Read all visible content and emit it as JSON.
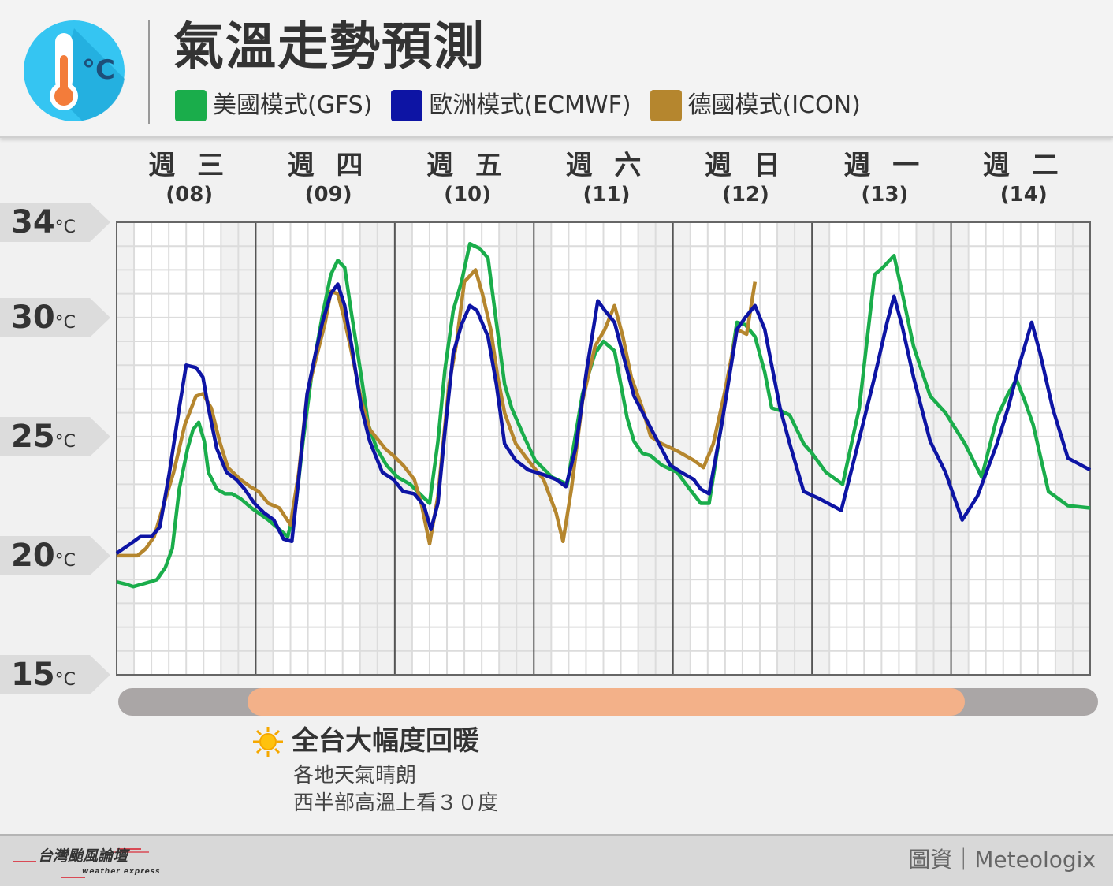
{
  "header": {
    "title": "氣溫走勢預測",
    "icon": "thermometer-celsius-icon"
  },
  "legend": [
    {
      "label": "美國模式(GFS)",
      "color": "#1aad4b"
    },
    {
      "label": "歐洲模式(ECMWF)",
      "color": "#0d14a4"
    },
    {
      "label": "德國模式(ICON)",
      "color": "#b5862e"
    }
  ],
  "chart_data": {
    "type": "line",
    "x_unit": "day of month",
    "xlim": [
      8,
      15
    ],
    "ylim": [
      15,
      34
    ],
    "y_ticks": [
      34,
      30,
      25,
      20,
      15
    ],
    "y_unit": "°C",
    "grid": true,
    "legend_position": "top",
    "categories": [
      {
        "day": "週 三",
        "date": "(08)"
      },
      {
        "day": "週 四",
        "date": "(09)"
      },
      {
        "day": "週 五",
        "date": "(10)"
      },
      {
        "day": "週 六",
        "date": "(11)"
      },
      {
        "day": "週 日",
        "date": "(12)"
      },
      {
        "day": "週 一",
        "date": "(13)"
      },
      {
        "day": "週 二",
        "date": "(14)"
      }
    ],
    "series": [
      {
        "name": "美國模式(GFS)",
        "color": "#1aad4b",
        "points": [
          [
            8.0,
            18.9
          ],
          [
            8.07,
            18.8
          ],
          [
            8.12,
            18.7
          ],
          [
            8.18,
            18.8
          ],
          [
            8.24,
            18.9
          ],
          [
            8.29,
            19.0
          ],
          [
            8.35,
            19.5
          ],
          [
            8.4,
            20.3
          ],
          [
            8.45,
            22.8
          ],
          [
            8.51,
            24.5
          ],
          [
            8.55,
            25.3
          ],
          [
            8.59,
            25.6
          ],
          [
            8.63,
            24.8
          ],
          [
            8.66,
            23.5
          ],
          [
            8.72,
            22.8
          ],
          [
            8.78,
            22.6
          ],
          [
            8.83,
            22.6
          ],
          [
            8.89,
            22.4
          ],
          [
            8.97,
            22.0
          ],
          [
            9.09,
            21.5
          ],
          [
            9.23,
            20.8
          ],
          [
            9.29,
            22.2
          ],
          [
            9.34,
            24.8
          ],
          [
            9.4,
            27.5
          ],
          [
            9.48,
            30.1
          ],
          [
            9.54,
            31.8
          ],
          [
            9.59,
            32.4
          ],
          [
            9.64,
            32.1
          ],
          [
            9.69,
            30.1
          ],
          [
            9.76,
            27.5
          ],
          [
            9.81,
            25.5
          ],
          [
            9.87,
            24.5
          ],
          [
            9.94,
            23.8
          ],
          [
            10.02,
            23.3
          ],
          [
            10.11,
            23.0
          ],
          [
            10.18,
            22.6
          ],
          [
            10.25,
            22.2
          ],
          [
            10.31,
            24.8
          ],
          [
            10.36,
            27.8
          ],
          [
            10.42,
            30.3
          ],
          [
            10.48,
            31.5
          ],
          [
            10.54,
            33.1
          ],
          [
            10.61,
            32.9
          ],
          [
            10.67,
            32.5
          ],
          [
            10.73,
            29.8
          ],
          [
            10.79,
            27.2
          ],
          [
            10.84,
            26.2
          ],
          [
            10.93,
            25.0
          ],
          [
            11.01,
            24.0
          ],
          [
            11.13,
            23.3
          ],
          [
            11.24,
            23.0
          ],
          [
            11.35,
            26.8
          ],
          [
            11.44,
            28.5
          ],
          [
            11.5,
            29.0
          ],
          [
            11.58,
            28.6
          ],
          [
            11.67,
            25.8
          ],
          [
            11.72,
            24.8
          ],
          [
            11.78,
            24.3
          ],
          [
            11.84,
            24.2
          ],
          [
            11.92,
            23.8
          ],
          [
            12.03,
            23.5
          ],
          [
            12.12,
            22.8
          ],
          [
            12.2,
            22.2
          ],
          [
            12.26,
            22.2
          ],
          [
            12.33,
            24.8
          ],
          [
            12.46,
            29.8
          ],
          [
            12.52,
            29.7
          ],
          [
            12.59,
            29.2
          ],
          [
            12.66,
            27.7
          ],
          [
            12.71,
            26.2
          ],
          [
            12.77,
            26.1
          ],
          [
            12.84,
            25.9
          ],
          [
            12.94,
            24.7
          ],
          [
            13.0,
            24.3
          ],
          [
            13.1,
            23.5
          ],
          [
            13.22,
            23.0
          ],
          [
            13.34,
            26.2
          ],
          [
            13.45,
            31.8
          ],
          [
            13.51,
            32.1
          ],
          [
            13.59,
            32.6
          ],
          [
            13.65,
            31.0
          ],
          [
            13.73,
            28.8
          ],
          [
            13.85,
            26.7
          ],
          [
            13.96,
            26.0
          ],
          [
            14.1,
            24.7
          ],
          [
            14.22,
            23.3
          ],
          [
            14.33,
            25.8
          ],
          [
            14.41,
            26.8
          ],
          [
            14.47,
            27.4
          ],
          [
            14.53,
            26.5
          ],
          [
            14.59,
            25.5
          ],
          [
            14.7,
            22.7
          ],
          [
            14.84,
            22.1
          ],
          [
            15.0,
            22.0
          ]
        ]
      },
      {
        "name": "歐洲模式(ECMWF)",
        "color": "#0d14a4",
        "points": [
          [
            8.0,
            20.1
          ],
          [
            8.1,
            20.5
          ],
          [
            8.17,
            20.8
          ],
          [
            8.25,
            20.8
          ],
          [
            8.31,
            21.2
          ],
          [
            8.38,
            23.5
          ],
          [
            8.45,
            26.2
          ],
          [
            8.5,
            28.0
          ],
          [
            8.57,
            27.9
          ],
          [
            8.62,
            27.5
          ],
          [
            8.66,
            26.2
          ],
          [
            8.72,
            24.5
          ],
          [
            8.79,
            23.5
          ],
          [
            8.86,
            23.2
          ],
          [
            8.92,
            22.8
          ],
          [
            8.99,
            22.2
          ],
          [
            9.06,
            21.8
          ],
          [
            9.13,
            21.5
          ],
          [
            9.2,
            20.7
          ],
          [
            9.26,
            20.6
          ],
          [
            9.31,
            23.3
          ],
          [
            9.37,
            26.8
          ],
          [
            9.43,
            28.5
          ],
          [
            9.48,
            29.8
          ],
          [
            9.54,
            31.0
          ],
          [
            9.59,
            31.4
          ],
          [
            9.64,
            30.5
          ],
          [
            9.69,
            28.8
          ],
          [
            9.76,
            26.2
          ],
          [
            9.82,
            24.8
          ],
          [
            9.91,
            23.5
          ],
          [
            9.99,
            23.2
          ],
          [
            10.06,
            22.7
          ],
          [
            10.14,
            22.6
          ],
          [
            10.21,
            22.1
          ],
          [
            10.26,
            21.1
          ],
          [
            10.31,
            22.2
          ],
          [
            10.36,
            25.2
          ],
          [
            10.42,
            28.5
          ],
          [
            10.48,
            29.7
          ],
          [
            10.54,
            30.5
          ],
          [
            10.59,
            30.3
          ],
          [
            10.67,
            29.2
          ],
          [
            10.73,
            27.2
          ],
          [
            10.79,
            24.7
          ],
          [
            10.87,
            24.0
          ],
          [
            10.96,
            23.6
          ],
          [
            11.07,
            23.4
          ],
          [
            11.16,
            23.2
          ],
          [
            11.23,
            22.9
          ],
          [
            11.3,
            24.5
          ],
          [
            11.38,
            27.8
          ],
          [
            11.46,
            30.7
          ],
          [
            11.51,
            30.3
          ],
          [
            11.58,
            29.8
          ],
          [
            11.67,
            27.8
          ],
          [
            11.72,
            26.7
          ],
          [
            11.81,
            25.7
          ],
          [
            11.89,
            24.8
          ],
          [
            11.98,
            23.8
          ],
          [
            12.06,
            23.5
          ],
          [
            12.15,
            23.2
          ],
          [
            12.2,
            22.8
          ],
          [
            12.26,
            22.6
          ],
          [
            12.35,
            25.5
          ],
          [
            12.46,
            29.5
          ],
          [
            12.52,
            30.0
          ],
          [
            12.59,
            30.5
          ],
          [
            12.66,
            29.5
          ],
          [
            12.71,
            28.0
          ],
          [
            12.77,
            26.2
          ],
          [
            12.84,
            24.7
          ],
          [
            12.94,
            22.7
          ],
          [
            13.05,
            22.4
          ],
          [
            13.21,
            21.9
          ],
          [
            13.31,
            24.2
          ],
          [
            13.45,
            27.5
          ],
          [
            13.54,
            29.8
          ],
          [
            13.59,
            30.9
          ],
          [
            13.65,
            29.6
          ],
          [
            13.73,
            27.5
          ],
          [
            13.85,
            24.8
          ],
          [
            13.96,
            23.5
          ],
          [
            14.08,
            21.5
          ],
          [
            14.19,
            22.5
          ],
          [
            14.33,
            24.7
          ],
          [
            14.41,
            26.2
          ],
          [
            14.5,
            28.2
          ],
          [
            14.58,
            29.8
          ],
          [
            14.64,
            28.5
          ],
          [
            14.73,
            26.2
          ],
          [
            14.84,
            24.1
          ],
          [
            15.0,
            23.6
          ]
        ]
      },
      {
        "name": "德國模式(ICON)",
        "color": "#b5862e",
        "points": [
          [
            8.0,
            20.0
          ],
          [
            8.07,
            20.0
          ],
          [
            8.15,
            20.0
          ],
          [
            8.21,
            20.3
          ],
          [
            8.27,
            20.8
          ],
          [
            8.32,
            21.8
          ],
          [
            8.41,
            23.5
          ],
          [
            8.49,
            25.5
          ],
          [
            8.57,
            26.7
          ],
          [
            8.62,
            26.8
          ],
          [
            8.68,
            26.2
          ],
          [
            8.74,
            24.8
          ],
          [
            8.8,
            23.7
          ],
          [
            8.89,
            23.2
          ],
          [
            8.96,
            22.9
          ],
          [
            9.02,
            22.7
          ],
          [
            9.09,
            22.2
          ],
          [
            9.17,
            22.0
          ],
          [
            9.25,
            21.3
          ],
          [
            9.31,
            23.5
          ],
          [
            9.37,
            26.8
          ],
          [
            9.43,
            28.2
          ],
          [
            9.5,
            29.8
          ],
          [
            9.54,
            31.1
          ],
          [
            9.59,
            31.0
          ],
          [
            9.63,
            30.1
          ],
          [
            9.68,
            28.8
          ],
          [
            9.76,
            26.5
          ],
          [
            9.82,
            25.3
          ],
          [
            9.93,
            24.5
          ],
          [
            9.99,
            24.2
          ],
          [
            10.06,
            23.8
          ],
          [
            10.14,
            23.2
          ],
          [
            10.19,
            22.2
          ],
          [
            10.25,
            20.5
          ],
          [
            10.31,
            22.5
          ],
          [
            10.39,
            27.2
          ],
          [
            10.44,
            28.8
          ],
          [
            10.5,
            31.5
          ],
          [
            10.58,
            32.0
          ],
          [
            10.63,
            31.0
          ],
          [
            10.69,
            29.5
          ],
          [
            10.74,
            27.5
          ],
          [
            10.79,
            26.0
          ],
          [
            10.87,
            24.7
          ],
          [
            10.96,
            24.0
          ],
          [
            11.07,
            23.2
          ],
          [
            11.16,
            21.8
          ],
          [
            11.21,
            20.6
          ],
          [
            11.27,
            22.8
          ],
          [
            11.35,
            26.5
          ],
          [
            11.44,
            28.8
          ],
          [
            11.51,
            29.5
          ],
          [
            11.58,
            30.5
          ],
          [
            11.64,
            29.2
          ],
          [
            11.7,
            27.5
          ],
          [
            11.78,
            26.2
          ],
          [
            11.84,
            25.0
          ],
          [
            11.92,
            24.7
          ],
          [
            12.03,
            24.4
          ],
          [
            12.15,
            24.0
          ],
          [
            12.22,
            23.7
          ],
          [
            12.29,
            24.7
          ],
          [
            12.37,
            26.8
          ],
          [
            12.46,
            29.5
          ],
          [
            12.53,
            29.3
          ],
          [
            12.59,
            31.5
          ]
        ]
      }
    ]
  },
  "period_bar": {
    "range_days": [
      9.0,
      14.1
    ],
    "color": "#f3b189"
  },
  "note": {
    "icon": "sun-icon",
    "title": "全台大幅度回暖",
    "lines": [
      "各地天氣晴朗",
      "西半部高溫上看３０度"
    ]
  },
  "footer": {
    "brand": "台灣颱風論壇",
    "brand_sub": "weather express",
    "credit": "圖資｜Meteologix"
  }
}
